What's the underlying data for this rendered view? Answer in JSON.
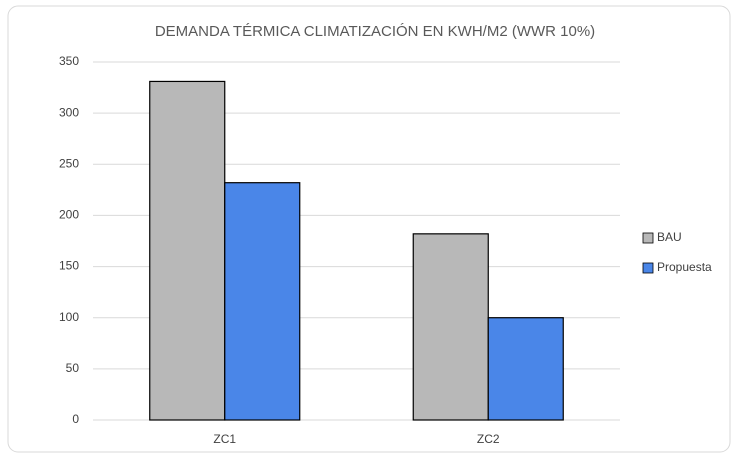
{
  "chart_data": {
    "type": "bar",
    "title": "DEMANDA TÉRMICA CLIMATIZACIÓN EN KWH/M2 (WWR 10%)",
    "categories": [
      "ZC1",
      "ZC2"
    ],
    "series": [
      {
        "name": "BAU",
        "color": "#b8b8b8",
        "values": [
          331,
          182
        ]
      },
      {
        "name": "Propuesta",
        "color": "#4a86e8",
        "values": [
          232,
          100
        ]
      }
    ],
    "ylim": [
      0,
      350
    ],
    "yticks": [
      0,
      50,
      100,
      150,
      200,
      250,
      300,
      350
    ],
    "grid": true,
    "legend": "right"
  }
}
